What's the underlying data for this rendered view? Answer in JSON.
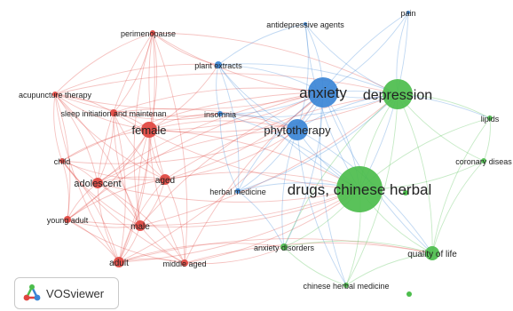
{
  "app": {
    "name": "VOSviewer"
  },
  "clusters": {
    "red": "#e0453f",
    "blue": "#3b85d6",
    "green": "#4cbd4c"
  },
  "nodes": [
    {
      "key": "perimenopause",
      "label": "perimenopause",
      "cluster": "red"
    },
    {
      "key": "acupuncture-therapy",
      "label": "acupuncture therapy",
      "cluster": "red"
    },
    {
      "key": "sleep-initiation",
      "label": "sleep initiation and maintenan",
      "cluster": "red"
    },
    {
      "key": "female",
      "label": "female",
      "cluster": "red"
    },
    {
      "key": "child",
      "label": "child",
      "cluster": "red"
    },
    {
      "key": "adolescent",
      "label": "adolescent",
      "cluster": "red"
    },
    {
      "key": "aged",
      "label": "aged",
      "cluster": "red"
    },
    {
      "key": "young-adult",
      "label": "young adult",
      "cluster": "red"
    },
    {
      "key": "male",
      "label": "male",
      "cluster": "red"
    },
    {
      "key": "adult",
      "label": "adult",
      "cluster": "red"
    },
    {
      "key": "middle-aged",
      "label": "middle aged",
      "cluster": "red"
    },
    {
      "key": "plant-extracts",
      "label": "plant extracts",
      "cluster": "blue"
    },
    {
      "key": "insomnia",
      "label": "insomnia",
      "cluster": "blue"
    },
    {
      "key": "antidepressive-agents",
      "label": "antidepressive agents",
      "cluster": "blue"
    },
    {
      "key": "pain",
      "label": "pain",
      "cluster": "blue"
    },
    {
      "key": "anxiety",
      "label": "anxiety",
      "cluster": "blue"
    },
    {
      "key": "phytotherapy",
      "label": "phytotherapy",
      "cluster": "blue"
    },
    {
      "key": "herbal-medicine",
      "label": "herbal medicine",
      "cluster": "blue"
    },
    {
      "key": "depression",
      "label": "depression",
      "cluster": "green"
    },
    {
      "key": "lipids",
      "label": "lipids",
      "cluster": "green"
    },
    {
      "key": "coronary-disease",
      "label": "coronary diseas",
      "cluster": "green"
    },
    {
      "key": "drugs-chinese-herbal",
      "label": "drugs, chinese herbal",
      "cluster": "green"
    },
    {
      "key": "anxiety-disorders",
      "label": "anxiety disorders",
      "cluster": "green"
    },
    {
      "key": "quality-of-life",
      "label": "quality of life",
      "cluster": "green"
    },
    {
      "key": "chinese-herbal-medicine",
      "label": "chinese herbal medicine",
      "cluster": "green"
    }
  ]
}
